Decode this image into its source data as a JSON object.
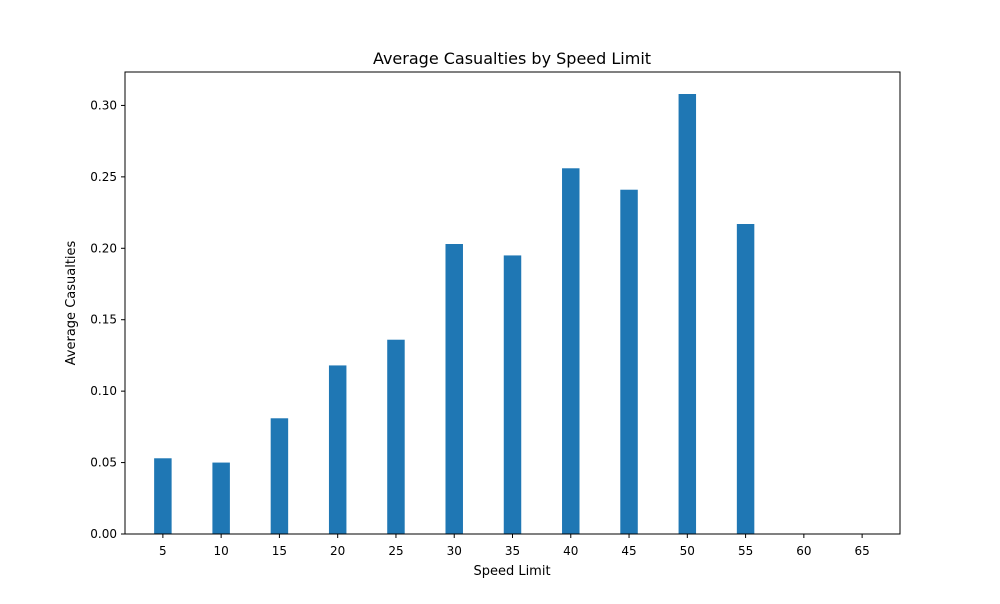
{
  "chart_data": {
    "type": "bar",
    "title": "Average Casualties by Speed Limit",
    "xlabel": "Speed Limit",
    "ylabel": "Average Casualties",
    "categories": [
      "5",
      "10",
      "15",
      "20",
      "25",
      "30",
      "35",
      "40",
      "45",
      "50",
      "55",
      "60",
      "65"
    ],
    "x": [
      5,
      10,
      15,
      20,
      25,
      30,
      35,
      40,
      45,
      50,
      55,
      60,
      65
    ],
    "values": [
      0.053,
      0.05,
      0.081,
      0.118,
      0.136,
      0.203,
      0.195,
      0.256,
      0.241,
      0.308,
      0.217,
      null,
      null
    ],
    "xlim": [
      1.75,
      68.25
    ],
    "ylim": [
      0,
      0.3234
    ],
    "yticks": [
      0.0,
      0.05,
      0.1,
      0.15,
      0.2,
      0.25,
      0.3
    ],
    "ytick_labels": [
      "0.00",
      "0.05",
      "0.10",
      "0.15",
      "0.20",
      "0.25",
      "0.30"
    ],
    "grid": false,
    "bar_color": "#1f77b4"
  }
}
